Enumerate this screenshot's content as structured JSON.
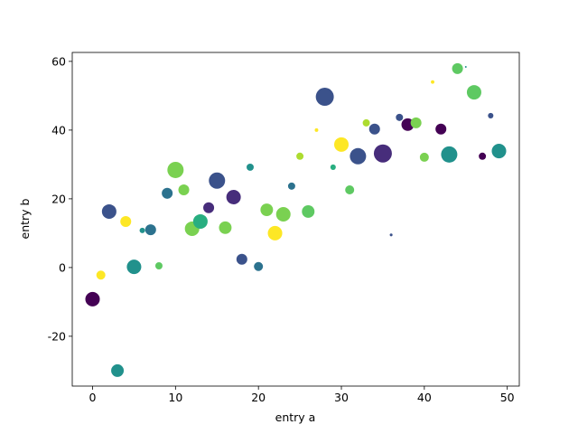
{
  "chart_data": {
    "type": "scatter",
    "x_label": "entry a",
    "y_label": "entry b",
    "x": [
      0,
      1,
      2,
      3,
      4,
      5,
      6,
      7,
      8,
      9,
      10,
      11,
      12,
      13,
      14,
      15,
      16,
      17,
      18,
      19,
      20,
      21,
      22,
      23,
      24,
      25,
      26,
      27,
      28,
      29,
      30,
      31,
      32,
      33,
      34,
      35,
      36,
      37,
      38,
      39,
      40,
      41,
      42,
      43,
      44,
      45,
      46,
      47,
      48,
      49
    ],
    "y": [
      -9.2,
      -2.2,
      16.3,
      -30,
      13.4,
      0.2,
      10.8,
      11,
      0.5,
      21.6,
      28.4,
      22.6,
      11.3,
      13.4,
      17.4,
      25.3,
      11.6,
      20.5,
      2.4,
      29.2,
      0.3,
      16.8,
      10,
      15.5,
      23.7,
      32.4,
      16.3,
      40,
      49.7,
      29.2,
      35.8,
      22.6,
      32.4,
      42.1,
      40.3,
      33.2,
      9.5,
      43.7,
      41.6,
      42.1,
      32.1,
      54,
      40.3,
      32.9,
      57.9,
      58.4,
      51,
      32.4,
      44.2,
      33.9
    ],
    "sizes": [
      133,
      52,
      133,
      101,
      75,
      133,
      19,
      75,
      33,
      75,
      168,
      75,
      133,
      133,
      75,
      168,
      101,
      133,
      75,
      33,
      52,
      101,
      133,
      133,
      33,
      33,
      101,
      8,
      207,
      19,
      133,
      52,
      168,
      33,
      75,
      207,
      5,
      33,
      101,
      75,
      52,
      8,
      75,
      168,
      75,
      2,
      133,
      33,
      19,
      133
    ],
    "colors": [
      "#440154",
      "#fde725",
      "#3b528b",
      "#21918c",
      "#fde725",
      "#21918c",
      "#21918c",
      "#2c728e",
      "#5ec962",
      "#2c728e",
      "#7ad151",
      "#7ad151",
      "#7ad151",
      "#28ae80",
      "#472d7b",
      "#3b528b",
      "#7ad151",
      "#472d7b",
      "#3b528b",
      "#21918c",
      "#2c728e",
      "#7ad151",
      "#fde725",
      "#7ad151",
      "#2c728e",
      "#addc30",
      "#5ec962",
      "#fde725",
      "#3b528b",
      "#28ae80",
      "#fde725",
      "#5ec962",
      "#3b528b",
      "#addc30",
      "#3b528b",
      "#472d7b",
      "#3b528b",
      "#3b528b",
      "#440154",
      "#7ad151",
      "#7ad151",
      "#fde725",
      "#440154",
      "#21918c",
      "#5ec962",
      "#21918c",
      "#5ec962",
      "#440154",
      "#3b528b",
      "#21918c"
    ],
    "xlim": [
      -2.45,
      51.45
    ],
    "ylim": [
      -34.5,
      62.6
    ],
    "xticks": [
      0,
      10,
      20,
      30,
      40,
      50
    ],
    "yticks": [
      -20,
      0,
      20,
      40,
      60
    ]
  }
}
